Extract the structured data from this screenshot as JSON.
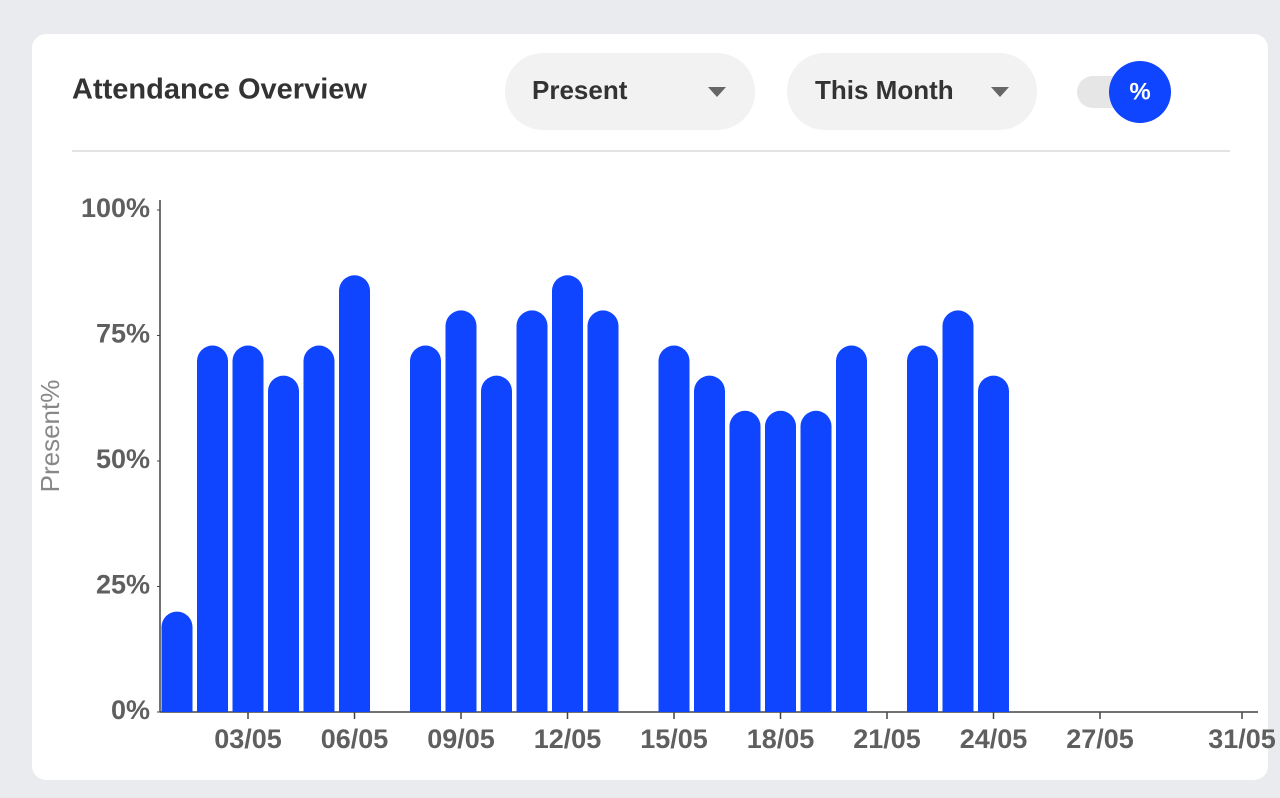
{
  "header": {
    "title": "Attendance Overview",
    "status_filter": "Present",
    "period_filter": "This Month",
    "percent_toggle": "%"
  },
  "chart_data": {
    "type": "bar",
    "ylabel": "Present%",
    "color": "#1045ff",
    "categories": [
      null,
      null,
      "03/05",
      null,
      null,
      "06/05",
      null,
      null,
      "09/05",
      null,
      null,
      "12/05",
      null,
      null,
      "15/05",
      null,
      null,
      "18/05",
      null,
      null,
      "21/05",
      null,
      null,
      "24/05",
      null,
      null,
      "27/05",
      null,
      null,
      null,
      "31/05"
    ],
    "values": [
      20,
      73,
      73,
      67,
      73,
      87,
      null,
      73,
      80,
      67,
      80,
      87,
      80,
      null,
      73,
      67,
      60,
      60,
      60,
      73,
      null,
      73,
      80,
      67,
      null,
      null,
      null,
      null,
      null,
      null,
      null
    ],
    "ylim": [
      0,
      100
    ],
    "yticks": [
      {
        "value": 0,
        "label": "0%"
      },
      {
        "value": 25,
        "label": "25%"
      },
      {
        "value": 50,
        "label": "50%"
      },
      {
        "value": 75,
        "label": "75%"
      },
      {
        "value": 100,
        "label": "100%"
      }
    ],
    "grid": false
  }
}
